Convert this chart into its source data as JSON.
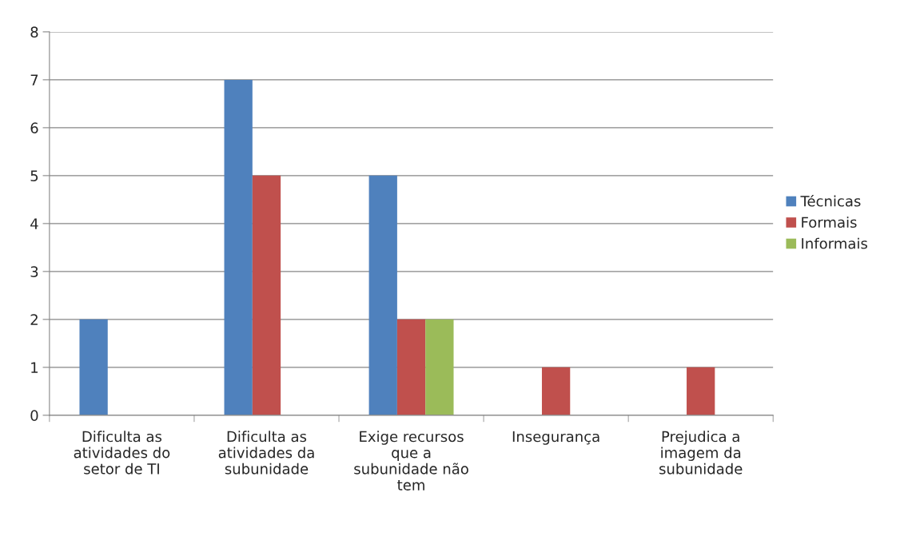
{
  "chart_data": {
    "type": "bar",
    "categories": [
      "Dificulta as atividades do setor de TI",
      "Dificulta as atividades da subunidade",
      "Exige recursos que a subunidade não tem",
      "Insegurança",
      "Prejudica a imagem da subunidade"
    ],
    "series": [
      {
        "name": "Técnicas",
        "color": "#4f81bd",
        "values": [
          2,
          7,
          5,
          0,
          0
        ]
      },
      {
        "name": "Formais",
        "color": "#c0504d",
        "values": [
          0,
          5,
          2,
          1,
          1
        ]
      },
      {
        "name": "Informais",
        "color": "#9bbb59",
        "values": [
          0,
          0,
          2,
          0,
          0
        ]
      }
    ],
    "ylim": [
      0,
      8
    ],
    "yticks": [
      0,
      1,
      2,
      3,
      4,
      5,
      6,
      7,
      8
    ],
    "grid": "y",
    "legend": "right"
  }
}
